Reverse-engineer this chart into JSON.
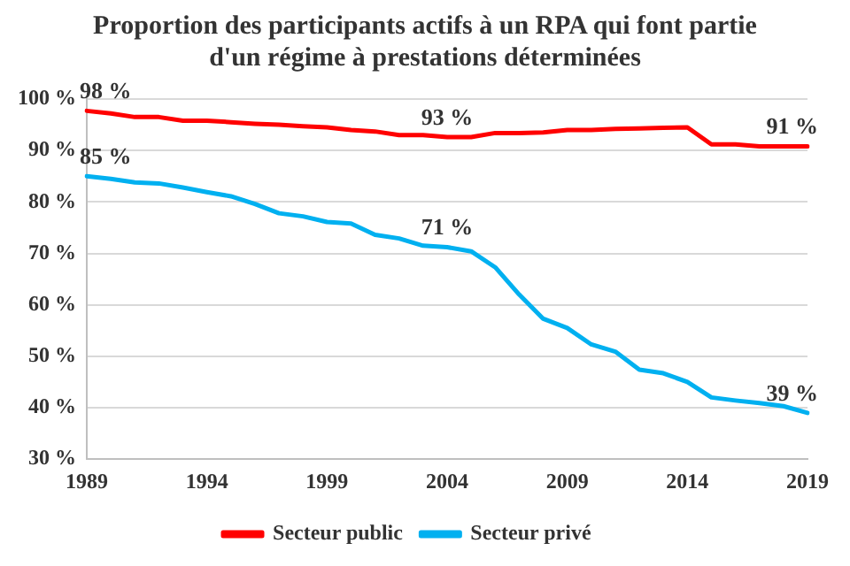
{
  "chart_data": {
    "type": "line",
    "title": "Proportion des participants actifs à un RPA qui font partie d'un régime à prestations déterminées",
    "categories": [
      "1989",
      null,
      null,
      null,
      null,
      "1994",
      null,
      null,
      null,
      null,
      "1999",
      null,
      null,
      null,
      null,
      "2004",
      null,
      null,
      null,
      null,
      "2009",
      null,
      null,
      null,
      null,
      "2014",
      null,
      null,
      null,
      null,
      "2019"
    ],
    "series": [
      {
        "name": "Secteur public",
        "color": "#ff0000",
        "values": [
          97.7,
          97.2,
          96.5,
          96.5,
          95.8,
          95.8,
          95.5,
          95.2,
          95.0,
          94.7,
          94.5,
          94.0,
          93.7,
          93.0,
          93.0,
          92.6,
          92.6,
          93.4,
          93.4,
          93.5,
          94.0,
          94.0,
          94.2,
          94.3,
          94.4,
          94.5,
          91.2,
          91.2,
          90.8,
          90.8,
          90.8
        ],
        "value_labels": [
          "98 %",
          null,
          null,
          null,
          null,
          null,
          null,
          null,
          null,
          null,
          null,
          null,
          null,
          null,
          null,
          "93 %",
          null,
          null,
          null,
          null,
          null,
          null,
          null,
          null,
          null,
          null,
          null,
          null,
          null,
          null,
          "91 %"
        ]
      },
      {
        "name": "Secteur privé",
        "color": "#00b0f0",
        "values": [
          85.0,
          84.5,
          83.8,
          83.6,
          82.8,
          81.9,
          81.1,
          79.6,
          77.8,
          77.2,
          76.1,
          75.8,
          73.6,
          72.9,
          71.5,
          71.2,
          70.4,
          67.3,
          62.0,
          57.3,
          55.5,
          52.3,
          50.9,
          47.4,
          46.7,
          45.0,
          42.0,
          41.4,
          40.9,
          40.3,
          39.0
        ],
        "value_labels": [
          "85 %",
          null,
          null,
          null,
          null,
          null,
          null,
          null,
          null,
          null,
          null,
          null,
          null,
          null,
          null,
          "71 %",
          null,
          null,
          null,
          null,
          null,
          null,
          null,
          null,
          null,
          null,
          null,
          null,
          null,
          null,
          "39 %"
        ]
      }
    ],
    "ylim": [
      30,
      100
    ],
    "yticks": [
      {
        "value": 30,
        "label": "30 %"
      },
      {
        "value": 40,
        "label": "40 %"
      },
      {
        "value": 50,
        "label": "50 %"
      },
      {
        "value": 60,
        "label": "60 %"
      },
      {
        "value": 70,
        "label": "70 %"
      },
      {
        "value": 80,
        "label": "80 %"
      },
      {
        "value": 90,
        "label": "90 %"
      },
      {
        "value": 100,
        "label": "100 %"
      }
    ],
    "grid": "y",
    "legend": "bottom",
    "marker": "none",
    "line_style": "solid"
  }
}
